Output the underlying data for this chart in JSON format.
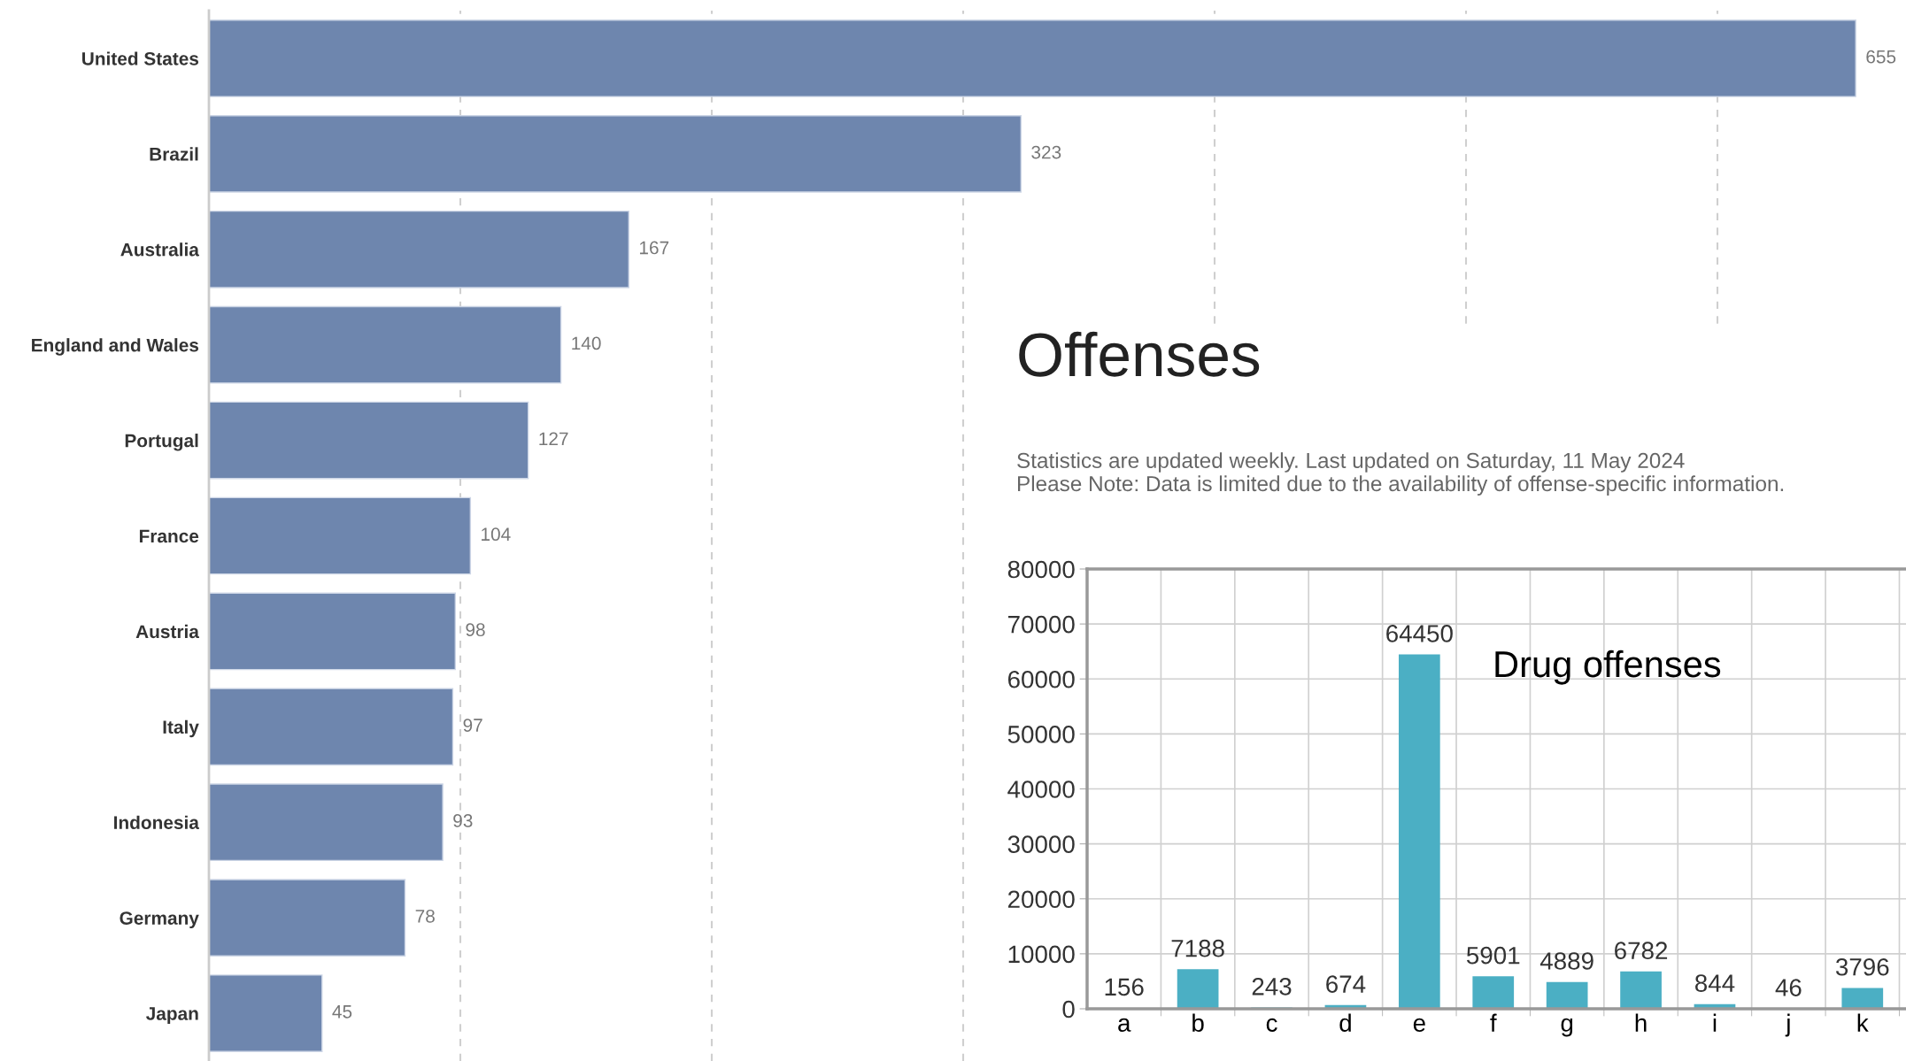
{
  "chart_data": [
    {
      "type": "bar",
      "orientation": "horizontal",
      "categories": [
        "United States",
        "Brazil",
        "Australia",
        "England and Wales",
        "Portugal",
        "France",
        "Austria",
        "Italy",
        "Indonesia",
        "Germany",
        "Japan"
      ],
      "values": [
        655,
        323,
        167,
        140,
        127,
        104,
        98,
        97,
        93,
        78,
        45
      ],
      "color": "#6e86ae",
      "data_labels": true,
      "xlim": [
        0,
        675
      ],
      "xticks": [
        {
          "value": 100,
          "label": null
        },
        {
          "value": 200,
          "label": null
        },
        {
          "value": 300,
          "label": null
        },
        {
          "value": 400,
          "label": null
        },
        {
          "value": 500,
          "label": null
        },
        {
          "value": 600,
          "label": null
        }
      ],
      "grid": "x",
      "tick_labels": "y"
    },
    {
      "type": "bar",
      "title": "Offenses",
      "subtitle": "Statistics are updated weekly. Last updated on Saturday, 11 May 2024\nPlease Note: Data is limited due to the availability of offense-specific information.",
      "categories": [
        "a",
        "b",
        "c",
        "d",
        "e",
        "f",
        "g",
        "h",
        "i",
        "j",
        "k"
      ],
      "values": [
        156,
        7188,
        243,
        674,
        64450,
        5901,
        4889,
        6782,
        844,
        46,
        3796
      ],
      "color": "#4bafc4",
      "data_labels": true,
      "ylim": [
        0,
        80000
      ],
      "yticks": [
        0,
        10000,
        20000,
        30000,
        40000,
        50000,
        60000,
        70000,
        80000
      ],
      "grid": true,
      "annotations": [
        "Drug offenses"
      ]
    }
  ]
}
